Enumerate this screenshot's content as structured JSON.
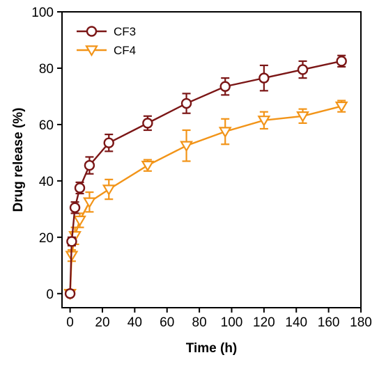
{
  "chart_data": {
    "type": "line",
    "title": "",
    "xlabel": "Time (h)",
    "ylabel": "Drug release (%)",
    "xlim": [
      -5,
      180
    ],
    "ylim": [
      -5,
      100
    ],
    "xticks": [
      0,
      20,
      40,
      60,
      80,
      100,
      120,
      140,
      160,
      180
    ],
    "yticks": [
      0,
      20,
      40,
      60,
      80,
      100
    ],
    "grid": false,
    "legend_position": "top-left",
    "series": [
      {
        "name": "CF3",
        "color": "#7b1616",
        "marker": "circle",
        "x": [
          0,
          1,
          3,
          6,
          12,
          24,
          48,
          72,
          96,
          120,
          144,
          168
        ],
        "y": [
          0,
          18.5,
          30.5,
          37.5,
          45.5,
          53.5,
          60.5,
          67.5,
          73.5,
          76.5,
          79.5,
          82.5
        ],
        "error": [
          0,
          1.5,
          2.0,
          2.0,
          3.0,
          3.0,
          2.5,
          3.5,
          3.0,
          4.5,
          3.0,
          2.0
        ]
      },
      {
        "name": "CF4",
        "color": "#f29418",
        "marker": "triangle-down",
        "x": [
          0,
          1,
          3,
          6,
          12,
          24,
          48,
          72,
          96,
          120,
          144,
          168
        ],
        "y": [
          0,
          13.5,
          20.5,
          26,
          32.5,
          37,
          45.5,
          52.5,
          57.5,
          61.5,
          63,
          66.5
        ],
        "error": [
          0,
          2.0,
          3.0,
          2.5,
          3.5,
          3.5,
          2.0,
          5.5,
          4.5,
          3.0,
          2.5,
          2.0
        ]
      }
    ]
  }
}
